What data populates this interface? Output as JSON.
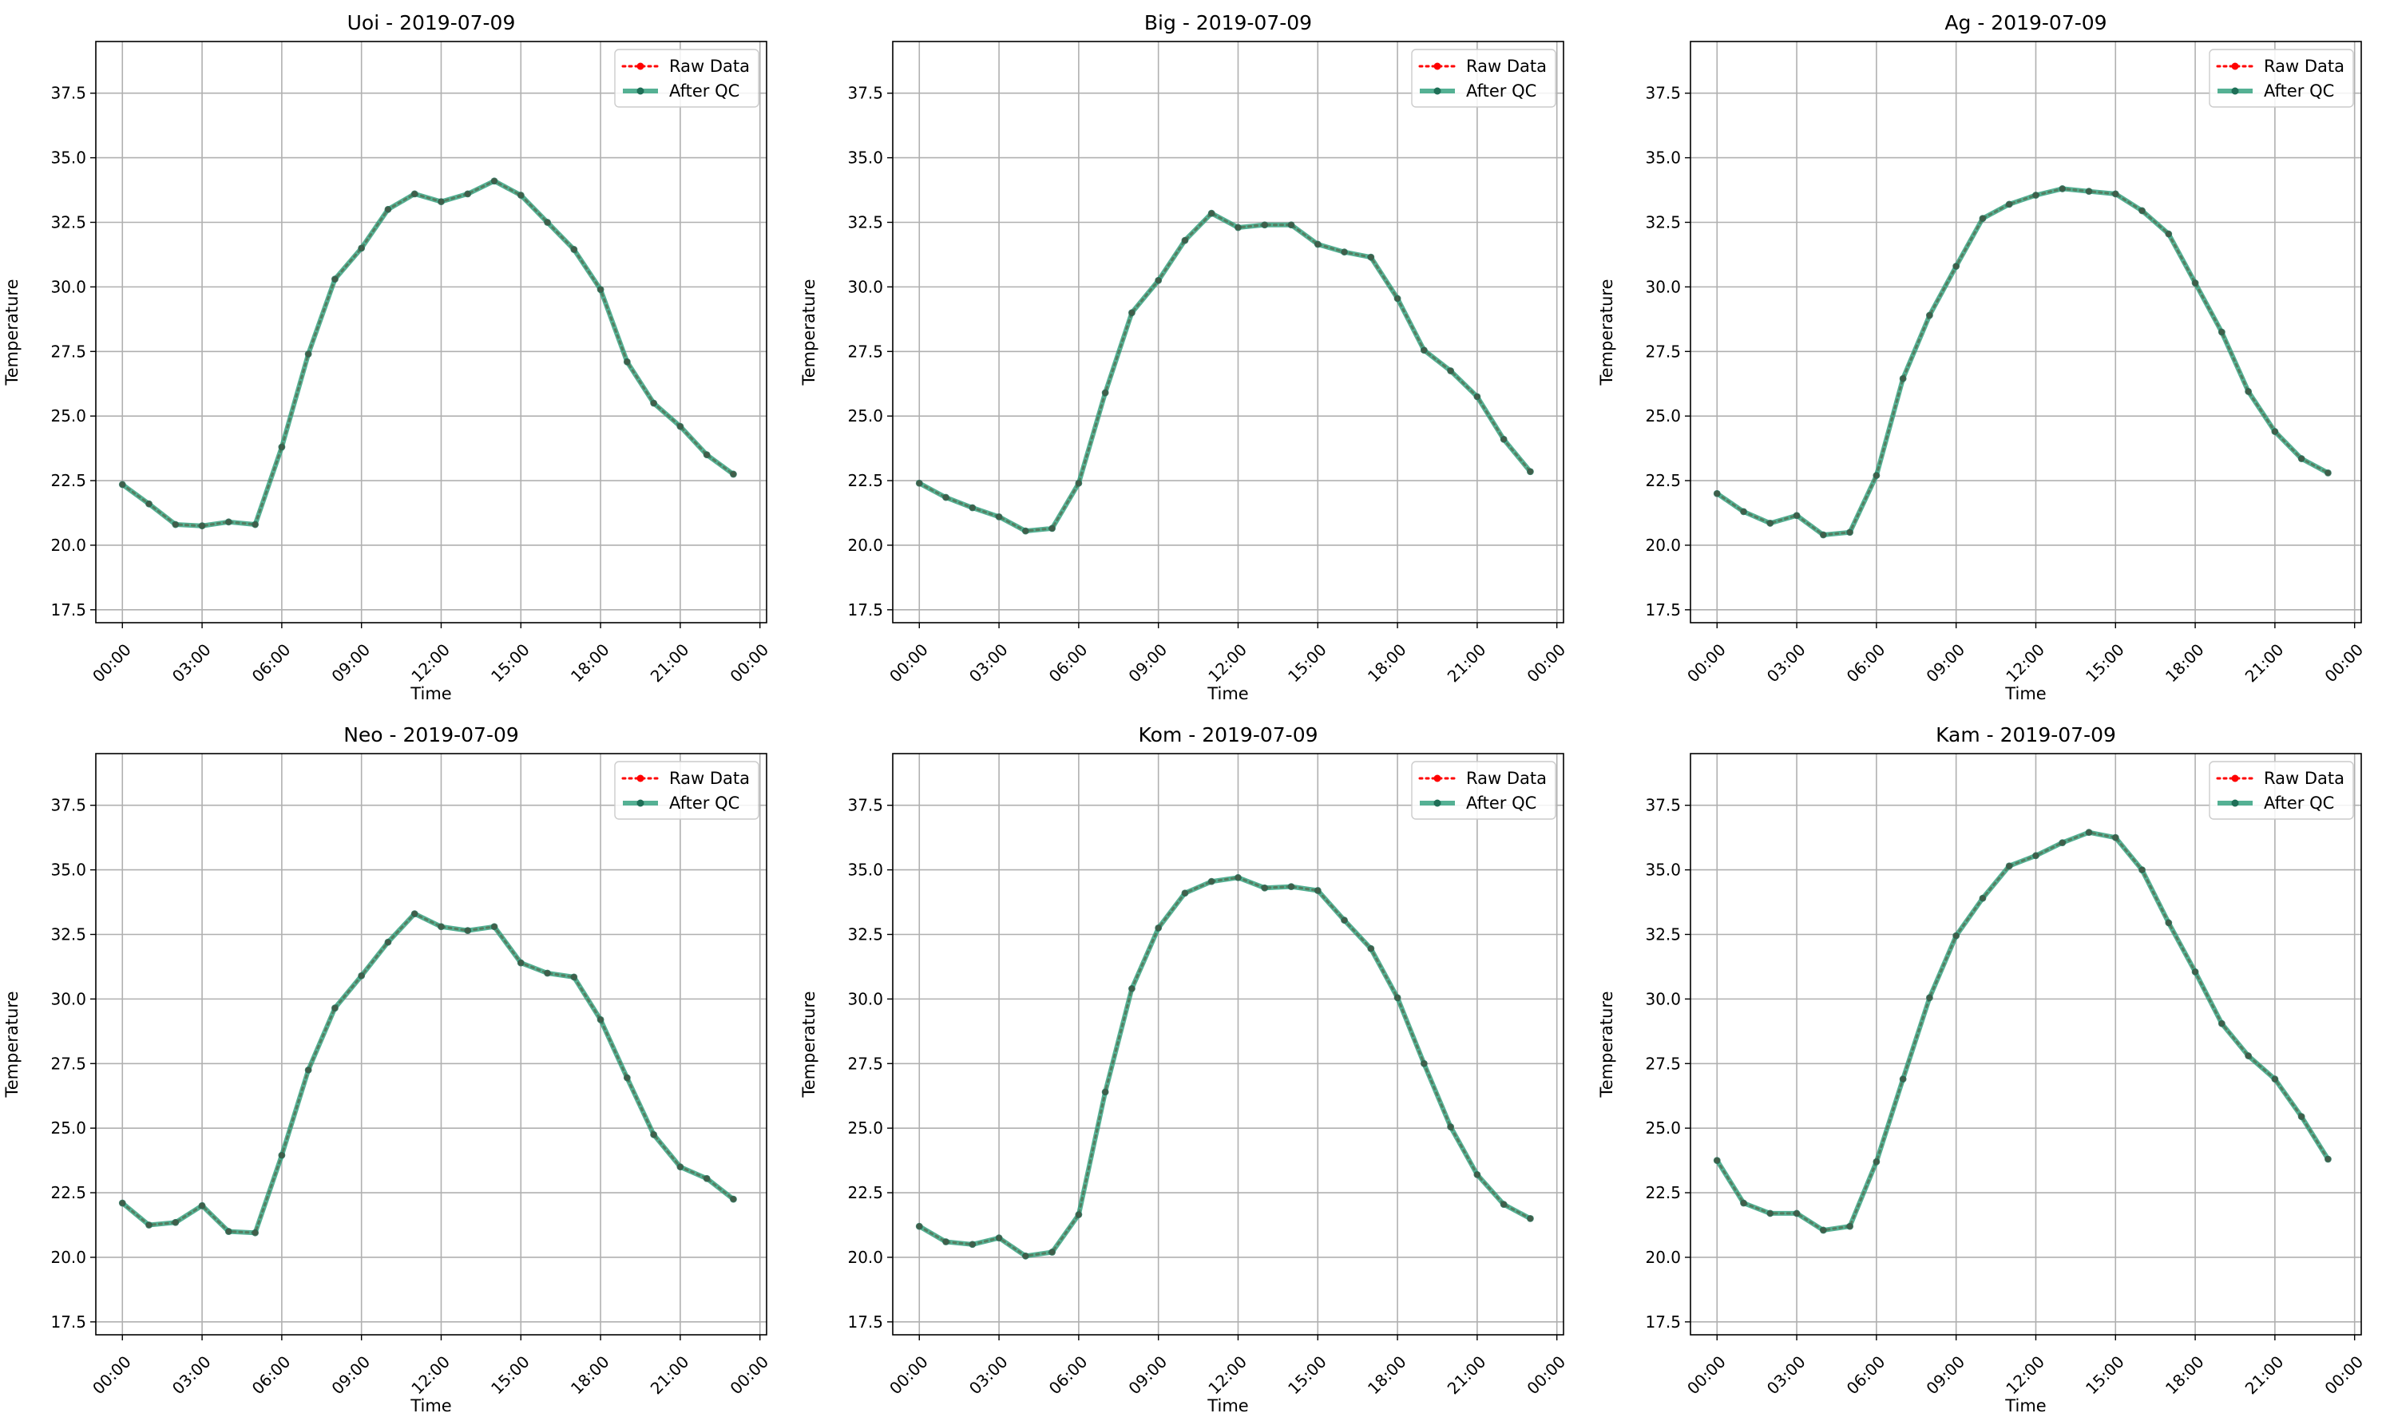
{
  "figure": {
    "background": "#ffffff"
  },
  "legend": {
    "raw_label": "Raw Data",
    "qc_label": "After QC",
    "raw_color": "#ff0000",
    "qc_color": "#2a9d79",
    "placement": "upper right"
  },
  "chart_data": [
    {
      "type": "line",
      "title": "Uoi - 2019-07-09",
      "xlabel": "Time",
      "ylabel": "Temperature",
      "xlim": [
        "2019-07-08 23:00",
        "2019-07-10 00:15"
      ],
      "ylim": [
        17.0,
        39.5
      ],
      "xticks": [
        "00:00",
        "03:00",
        "06:00",
        "09:00",
        "12:00",
        "15:00",
        "18:00",
        "21:00",
        "00:00"
      ],
      "yticks": [
        "17.5",
        "20.0",
        "22.5",
        "25.0",
        "27.5",
        "30.0",
        "32.5",
        "35.0",
        "37.5"
      ],
      "grid": true,
      "legend": "upper right",
      "x_hours": [
        0,
        1,
        2,
        3,
        4,
        5,
        6,
        7,
        8,
        9,
        10,
        11,
        12,
        13,
        14,
        15,
        16,
        17,
        18,
        19,
        20,
        21,
        22,
        23
      ],
      "series": [
        {
          "name": "Raw Data",
          "color": "#ff0000",
          "values": [
            22.35,
            21.6,
            20.8,
            20.75,
            20.9,
            20.8,
            23.8,
            27.4,
            30.3,
            31.5,
            33.0,
            33.6,
            33.3,
            33.6,
            34.1,
            33.55,
            32.5,
            31.45,
            29.9,
            27.1,
            25.5,
            24.6,
            23.5,
            22.75
          ]
        },
        {
          "name": "After QC",
          "color": "#2a9d79",
          "values": [
            22.35,
            21.6,
            20.8,
            20.75,
            20.9,
            20.8,
            23.8,
            27.4,
            30.3,
            31.5,
            33.0,
            33.6,
            33.3,
            33.6,
            34.1,
            33.55,
            32.5,
            31.45,
            29.9,
            27.1,
            25.5,
            24.6,
            23.5,
            22.75
          ]
        }
      ]
    },
    {
      "type": "line",
      "title": "Big - 2019-07-09",
      "xlabel": "Time",
      "ylabel": "Temperature",
      "xlim": [
        "2019-07-08 23:00",
        "2019-07-10 00:15"
      ],
      "ylim": [
        17.0,
        39.5
      ],
      "xticks": [
        "00:00",
        "03:00",
        "06:00",
        "09:00",
        "12:00",
        "15:00",
        "18:00",
        "21:00",
        "00:00"
      ],
      "yticks": [
        "17.5",
        "20.0",
        "22.5",
        "25.0",
        "27.5",
        "30.0",
        "32.5",
        "35.0",
        "37.5"
      ],
      "grid": true,
      "legend": "upper right",
      "x_hours": [
        0,
        1,
        2,
        3,
        4,
        5,
        6,
        7,
        8,
        9,
        10,
        11,
        12,
        13,
        14,
        15,
        16,
        17,
        18,
        19,
        20,
        21,
        22,
        23
      ],
      "series": [
        {
          "name": "Raw Data",
          "color": "#ff0000",
          "values": [
            22.4,
            21.85,
            21.45,
            21.1,
            20.55,
            20.65,
            22.4,
            25.9,
            29.0,
            30.25,
            31.8,
            32.85,
            32.3,
            32.4,
            32.4,
            31.65,
            31.35,
            31.15,
            29.55,
            27.55,
            26.75,
            25.75,
            24.1,
            22.85
          ]
        },
        {
          "name": "After QC",
          "color": "#2a9d79",
          "values": [
            22.4,
            21.85,
            21.45,
            21.1,
            20.55,
            20.65,
            22.4,
            25.9,
            29.0,
            30.25,
            31.8,
            32.85,
            32.3,
            32.4,
            32.4,
            31.65,
            31.35,
            31.15,
            29.55,
            27.55,
            26.75,
            25.75,
            24.1,
            22.85
          ]
        }
      ]
    },
    {
      "type": "line",
      "title": "Ag - 2019-07-09",
      "xlabel": "Time",
      "ylabel": "Temperature",
      "xlim": [
        "2019-07-08 23:00",
        "2019-07-10 00:15"
      ],
      "ylim": [
        17.0,
        39.5
      ],
      "xticks": [
        "00:00",
        "03:00",
        "06:00",
        "09:00",
        "12:00",
        "15:00",
        "18:00",
        "21:00",
        "00:00"
      ],
      "yticks": [
        "17.5",
        "20.0",
        "22.5",
        "25.0",
        "27.5",
        "30.0",
        "32.5",
        "35.0",
        "37.5"
      ],
      "grid": true,
      "legend": "upper right",
      "x_hours": [
        0,
        1,
        2,
        3,
        4,
        5,
        6,
        7,
        8,
        9,
        10,
        11,
        12,
        13,
        14,
        15,
        16,
        17,
        18,
        19,
        20,
        21,
        22,
        23
      ],
      "series": [
        {
          "name": "Raw Data",
          "color": "#ff0000",
          "values": [
            22.0,
            21.3,
            20.85,
            21.15,
            20.4,
            20.5,
            22.7,
            26.45,
            28.9,
            30.8,
            32.65,
            33.2,
            33.55,
            33.8,
            33.7,
            33.6,
            32.95,
            32.05,
            30.15,
            28.25,
            25.95,
            24.4,
            23.35,
            22.8
          ]
        },
        {
          "name": "After QC",
          "color": "#2a9d79",
          "values": [
            22.0,
            21.3,
            20.85,
            21.15,
            20.4,
            20.5,
            22.7,
            26.45,
            28.9,
            30.8,
            32.65,
            33.2,
            33.55,
            33.8,
            33.7,
            33.6,
            32.95,
            32.05,
            30.15,
            28.25,
            25.95,
            24.4,
            23.35,
            22.8
          ]
        }
      ]
    },
    {
      "type": "line",
      "title": "Neo - 2019-07-09",
      "xlabel": "Time",
      "ylabel": "Temperature",
      "xlim": [
        "2019-07-08 23:00",
        "2019-07-10 00:15"
      ],
      "ylim": [
        17.0,
        39.5
      ],
      "xticks": [
        "00:00",
        "03:00",
        "06:00",
        "09:00",
        "12:00",
        "15:00",
        "18:00",
        "21:00",
        "00:00"
      ],
      "yticks": [
        "17.5",
        "20.0",
        "22.5",
        "25.0",
        "27.5",
        "30.0",
        "32.5",
        "35.0",
        "37.5"
      ],
      "grid": true,
      "legend": "upper right",
      "x_hours": [
        0,
        1,
        2,
        3,
        4,
        5,
        6,
        7,
        8,
        9,
        10,
        11,
        12,
        13,
        14,
        15,
        16,
        17,
        18,
        19,
        20,
        21,
        22,
        23
      ],
      "series": [
        {
          "name": "Raw Data",
          "color": "#ff0000",
          "values": [
            22.1,
            21.25,
            21.35,
            22.0,
            21.0,
            20.95,
            23.95,
            27.25,
            29.65,
            30.9,
            32.2,
            33.3,
            32.8,
            32.65,
            32.8,
            31.4,
            31.0,
            30.85,
            29.2,
            26.95,
            24.75,
            23.5,
            23.05,
            22.25
          ]
        },
        {
          "name": "After QC",
          "color": "#2a9d79",
          "values": [
            22.1,
            21.25,
            21.35,
            22.0,
            21.0,
            20.95,
            23.95,
            27.25,
            29.65,
            30.9,
            32.2,
            33.3,
            32.8,
            32.65,
            32.8,
            31.4,
            31.0,
            30.85,
            29.2,
            26.95,
            24.75,
            23.5,
            23.05,
            22.25
          ]
        }
      ]
    },
    {
      "type": "line",
      "title": "Kom - 2019-07-09",
      "xlabel": "Time",
      "ylabel": "Temperature",
      "xlim": [
        "2019-07-08 23:00",
        "2019-07-10 00:15"
      ],
      "ylim": [
        17.0,
        39.5
      ],
      "xticks": [
        "00:00",
        "03:00",
        "06:00",
        "09:00",
        "12:00",
        "15:00",
        "18:00",
        "21:00",
        "00:00"
      ],
      "yticks": [
        "17.5",
        "20.0",
        "22.5",
        "25.0",
        "27.5",
        "30.0",
        "32.5",
        "35.0",
        "37.5"
      ],
      "grid": true,
      "legend": "upper right",
      "x_hours": [
        0,
        1,
        2,
        3,
        4,
        5,
        6,
        7,
        8,
        9,
        10,
        11,
        12,
        13,
        14,
        15,
        16,
        17,
        18,
        19,
        20,
        21,
        22,
        23
      ],
      "series": [
        {
          "name": "Raw Data",
          "color": "#ff0000",
          "values": [
            21.2,
            20.6,
            20.5,
            20.75,
            20.05,
            20.2,
            21.65,
            26.4,
            30.4,
            32.75,
            34.1,
            34.55,
            34.7,
            34.3,
            34.35,
            34.2,
            33.05,
            31.95,
            30.05,
            27.5,
            25.05,
            23.2,
            22.05,
            21.5
          ]
        },
        {
          "name": "After QC",
          "color": "#2a9d79",
          "values": [
            21.2,
            20.6,
            20.5,
            20.75,
            20.05,
            20.2,
            21.65,
            26.4,
            30.4,
            32.75,
            34.1,
            34.55,
            34.7,
            34.3,
            34.35,
            34.2,
            33.05,
            31.95,
            30.05,
            27.5,
            25.05,
            23.2,
            22.05,
            21.5
          ]
        }
      ]
    },
    {
      "type": "line",
      "title": "Kam - 2019-07-09",
      "xlabel": "Time",
      "ylabel": "Temperature",
      "xlim": [
        "2019-07-08 23:00",
        "2019-07-10 00:15"
      ],
      "ylim": [
        17.0,
        39.5
      ],
      "xticks": [
        "00:00",
        "03:00",
        "06:00",
        "09:00",
        "12:00",
        "15:00",
        "18:00",
        "21:00",
        "00:00"
      ],
      "yticks": [
        "17.5",
        "20.0",
        "22.5",
        "25.0",
        "27.5",
        "30.0",
        "32.5",
        "35.0",
        "37.5"
      ],
      "grid": true,
      "legend": "upper right",
      "x_hours": [
        0,
        1,
        2,
        3,
        4,
        5,
        6,
        7,
        8,
        9,
        10,
        11,
        12,
        13,
        14,
        15,
        16,
        17,
        18,
        19,
        20,
        21,
        22,
        23
      ],
      "series": [
        {
          "name": "Raw Data",
          "color": "#ff0000",
          "values": [
            23.75,
            22.1,
            21.7,
            21.7,
            21.05,
            21.2,
            23.7,
            26.9,
            30.05,
            32.45,
            33.9,
            35.15,
            35.55,
            36.05,
            36.45,
            36.25,
            35.0,
            32.95,
            31.05,
            29.05,
            27.8,
            26.9,
            25.45,
            23.8
          ]
        },
        {
          "name": "After QC",
          "color": "#2a9d79",
          "values": [
            23.75,
            22.1,
            21.7,
            21.7,
            21.05,
            21.2,
            23.7,
            26.9,
            30.05,
            32.45,
            33.9,
            35.15,
            35.55,
            36.05,
            36.45,
            36.25,
            35.0,
            32.95,
            31.05,
            29.05,
            27.8,
            26.9,
            25.45,
            23.8
          ]
        }
      ]
    }
  ]
}
